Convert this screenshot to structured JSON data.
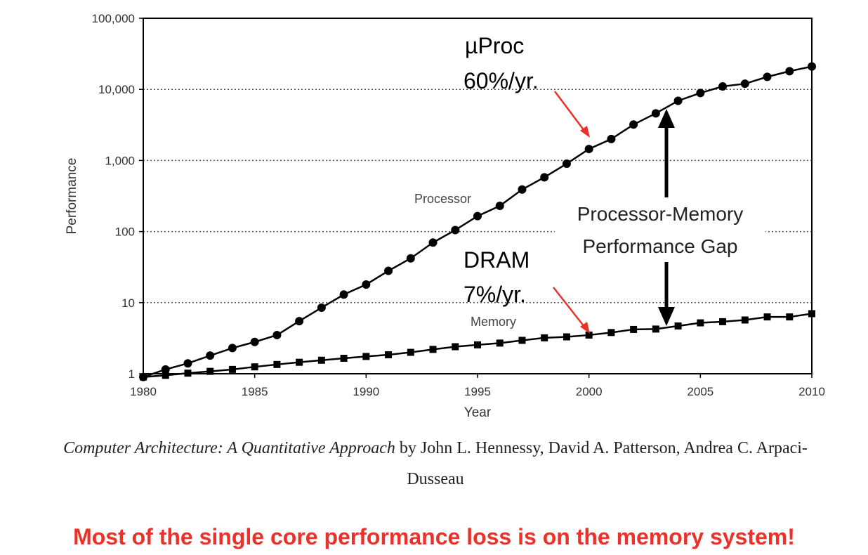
{
  "chart_data": {
    "type": "line",
    "xlabel": "Year",
    "ylabel": "Performance",
    "yscale": "log",
    "xlim": [
      1980,
      2010
    ],
    "ylim": [
      1,
      100000
    ],
    "grid": "horizontal dotted",
    "x_ticks": [
      "1980",
      "1985",
      "1990",
      "1995",
      "2000",
      "2005",
      "2010"
    ],
    "y_ticks": [
      "1",
      "10",
      "100",
      "1,000",
      "10,000",
      "100,000"
    ],
    "x": [
      1980,
      1981,
      1982,
      1983,
      1984,
      1985,
      1986,
      1987,
      1988,
      1989,
      1990,
      1991,
      1992,
      1993,
      1994,
      1995,
      1996,
      1997,
      1998,
      1999,
      2000,
      2001,
      2002,
      2003,
      2004,
      2005,
      2006,
      2007,
      2008,
      2009,
      2010
    ],
    "series": [
      {
        "name": "Processor",
        "marker": "circle",
        "values": [
          0.9,
          1.15,
          1.4,
          1.8,
          2.3,
          2.8,
          3.5,
          5.5,
          8.5,
          13,
          18,
          28,
          42,
          70,
          105,
          165,
          230,
          390,
          580,
          900,
          1450,
          2000,
          3200,
          4600,
          6900,
          8900,
          11000,
          12000,
          15000,
          18000,
          21000
        ]
      },
      {
        "name": "Memory",
        "marker": "square",
        "values": [
          0.9,
          0.95,
          1.02,
          1.08,
          1.15,
          1.25,
          1.35,
          1.45,
          1.55,
          1.65,
          1.75,
          1.85,
          2.0,
          2.2,
          2.4,
          2.55,
          2.7,
          2.95,
          3.2,
          3.3,
          3.5,
          3.8,
          4.2,
          4.25,
          4.7,
          5.2,
          5.4,
          5.7,
          6.3,
          6.3,
          7.0
        ]
      }
    ],
    "annotations": {
      "proc_rate_line1": "µProc",
      "proc_rate_line2": "60%/yr.",
      "dram_rate_line1": "DRAM",
      "dram_rate_line2": "7%/yr.",
      "gap_line1": "Processor-Memory",
      "gap_line2": "Performance Gap"
    }
  },
  "citation": {
    "book_title": "Computer Architecture: A Quantitative Approach",
    "authors": " by John L. Hennessy, David A. Patterson, Andrea C. Arpaci-",
    "authors_cont": "Dusseau"
  },
  "conclusion": "Most of the single core performance loss is on the memory system!",
  "colors": {
    "accent_red": "#e8322a",
    "series": "#000000",
    "grid": "#555555"
  }
}
